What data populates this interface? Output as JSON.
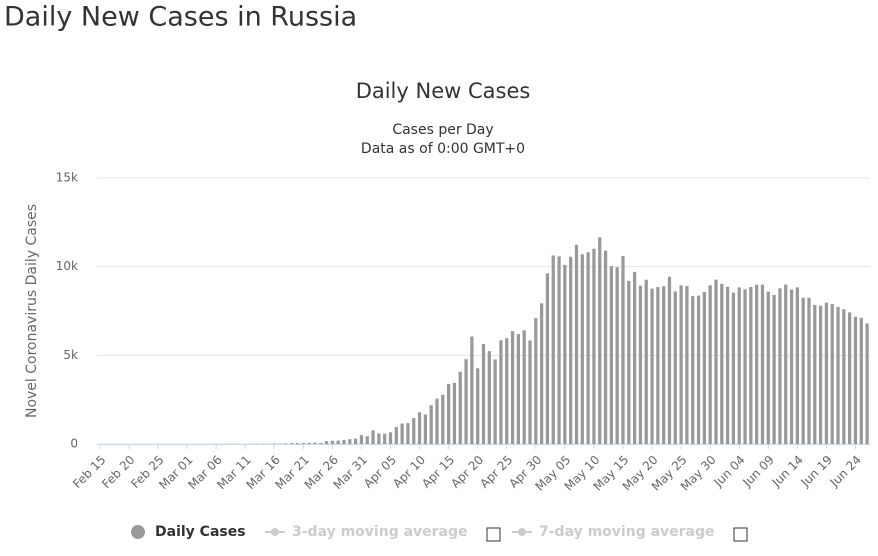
{
  "page_title": "Daily New Cases in Russia",
  "chart_data": {
    "type": "bar",
    "title": "Daily New Cases",
    "subtitle": [
      "Cases per Day",
      "Data as of 0:00 GMT+0"
    ],
    "y_label": "Novel Coronavirus Daily Cases",
    "categories": [
      "Feb 15",
      null,
      null,
      null,
      null,
      "Feb 20",
      null,
      null,
      null,
      null,
      "Feb 25",
      null,
      null,
      null,
      null,
      "Mar 01",
      null,
      null,
      null,
      null,
      "Mar 06",
      null,
      null,
      null,
      null,
      "Mar 11",
      null,
      null,
      null,
      null,
      "Mar 16",
      null,
      null,
      null,
      null,
      "Mar 21",
      null,
      null,
      null,
      null,
      "Mar 26",
      null,
      null,
      null,
      null,
      "Mar 31",
      null,
      null,
      null,
      null,
      "Apr 05",
      null,
      null,
      null,
      null,
      "Apr 10",
      null,
      null,
      null,
      null,
      "Apr 15",
      null,
      null,
      null,
      null,
      "Apr 20",
      null,
      null,
      null,
      null,
      "Apr 25",
      null,
      null,
      null,
      null,
      "Apr 30",
      null,
      null,
      null,
      null,
      "May 05",
      null,
      null,
      null,
      null,
      "May 10",
      null,
      null,
      null,
      null,
      "May 15",
      null,
      null,
      null,
      null,
      "May 20",
      null,
      null,
      null,
      null,
      "May 25",
      null,
      null,
      null,
      null,
      "May 30",
      null,
      null,
      null,
      null,
      "Jun 04",
      null,
      null,
      null,
      null,
      "Jun 09",
      null,
      null,
      null,
      null,
      "Jun 14",
      null,
      null,
      null,
      null,
      "Jun 19",
      null,
      null,
      null,
      null,
      "Jun 24",
      null,
      null
    ],
    "series": [
      {
        "name": "Daily Cases",
        "color": "#999999",
        "values": [
          0,
          0,
          0,
          0,
          0,
          0,
          0,
          0,
          0,
          0,
          0,
          0,
          0,
          0,
          0,
          0,
          1,
          0,
          0,
          1,
          6,
          0,
          3,
          0,
          7,
          2,
          8,
          11,
          14,
          4,
          30,
          21,
          33,
          52,
          54,
          53,
          61,
          71,
          57,
          163,
          182,
          196,
          228,
          270,
          302,
          501,
          440,
          771,
          601,
          582,
          658,
          954,
          1154,
          1175,
          1459,
          1786,
          1667,
          2186,
          2558,
          2774,
          3388,
          3448,
          4070,
          4785,
          6060,
          4268,
          5642,
          5236,
          4774,
          5849,
          5966,
          6361,
          6198,
          6411,
          5841,
          7099,
          7933,
          9623,
          10633,
          10581,
          10102,
          10559,
          11231,
          10699,
          10817,
          11012,
          11656,
          10899,
          10028,
          9974,
          10598,
          9200,
          9709,
          8926,
          9263,
          8764,
          8849,
          8894,
          9434,
          8599,
          8946,
          8915,
          8338,
          8371,
          8572,
          8952,
          9268,
          9035,
          8863,
          8536,
          8831,
          8726,
          8855,
          8984,
          8985,
          8595,
          8404,
          8779,
          8987,
          8706,
          8835,
          8246,
          8248,
          7843,
          7790,
          7972,
          7889,
          7728,
          7600,
          7425,
          7176,
          7113,
          6800
        ]
      }
    ],
    "legend_inactive": [
      "3-day moving average",
      "7-day moving average"
    ],
    "ylim": [
      0,
      15000
    ],
    "yticks": [
      {
        "value": 0,
        "label": "0"
      },
      {
        "value": 5000,
        "label": "5k"
      },
      {
        "value": 10000,
        "label": "10k"
      },
      {
        "value": 15000,
        "label": "15k"
      }
    ],
    "grid": true
  }
}
